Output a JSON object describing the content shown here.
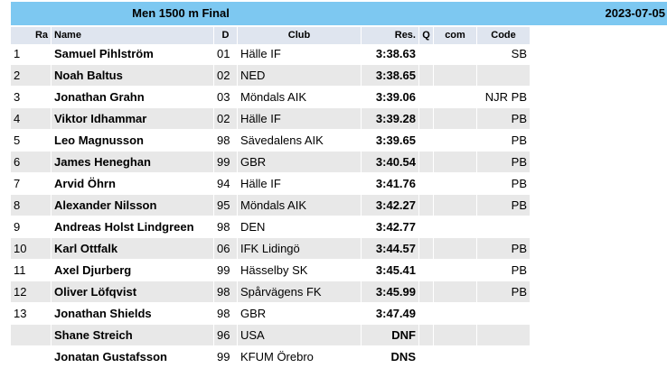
{
  "header": {
    "title": "Men 1500 m Final",
    "date": "2023-07-05"
  },
  "table": {
    "columns": [
      "Ra",
      "Name",
      "D",
      "Club",
      "Res.",
      "Q",
      "com",
      "Code"
    ],
    "rows": [
      [
        1,
        "Samuel Pihlström",
        "01",
        "Hälle IF",
        "3:38.63",
        null,
        null,
        "SB"
      ],
      [
        2,
        "Noah Baltus",
        "02",
        "NED",
        "3:38.65",
        null,
        null,
        null
      ],
      [
        3,
        "Jonathan Grahn",
        "03",
        "Möndals AIK",
        "3:39.06",
        null,
        null,
        "NJR PB"
      ],
      [
        4,
        "Viktor Idhammar",
        "02",
        "Hälle IF",
        "3:39.28",
        null,
        null,
        "PB"
      ],
      [
        5,
        "Leo Magnusson",
        "98",
        "Sävedalens AIK",
        "3:39.65",
        null,
        null,
        "PB"
      ],
      [
        6,
        "James Heneghan",
        "99",
        "GBR",
        "3:40.54",
        null,
        null,
        "PB"
      ],
      [
        7,
        "Arvid Öhrn",
        "94",
        "Hälle IF",
        "3:41.76",
        null,
        null,
        "PB"
      ],
      [
        8,
        "Alexander Nilsson",
        "95",
        "Möndals AIK",
        "3:42.27",
        null,
        null,
        "PB"
      ],
      [
        9,
        "Andreas Holst Lindgreen",
        "98",
        "DEN",
        "3:42.77",
        null,
        null,
        null
      ],
      [
        10,
        "Karl Ottfalk",
        "06",
        "IFK Lidingö",
        "3:44.57",
        null,
        null,
        "PB"
      ],
      [
        11,
        "Axel Djurberg",
        "99",
        "Hässelby SK",
        "3:45.41",
        null,
        null,
        "PB"
      ],
      [
        12,
        "Oliver Löfqvist",
        "98",
        "Spårvägens FK",
        "3:45.99",
        null,
        null,
        "PB"
      ],
      [
        13,
        "Jonathan Shields",
        "98",
        "GBR",
        "3:47.49",
        null,
        null,
        null
      ],
      [
        null,
        "Shane Streich",
        "96",
        "USA",
        "DNF",
        null,
        null,
        null
      ],
      [
        null,
        "Jonatan Gustafsson",
        "99",
        "KFUM Örebro",
        "DNS",
        null,
        null,
        null
      ]
    ]
  }
}
